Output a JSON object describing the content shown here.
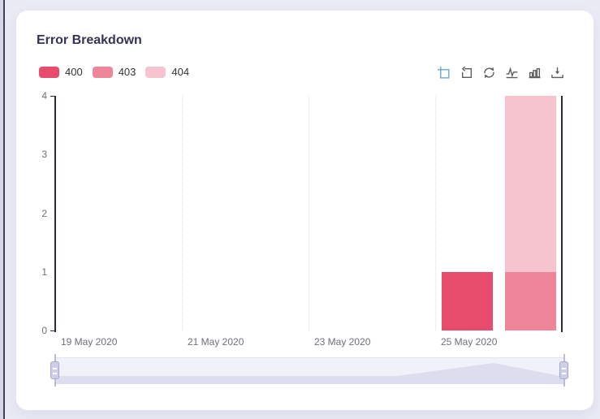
{
  "window": {
    "background": "#ebebf6",
    "edge_strip_color": "#d6d6e8",
    "edge_line_color": "#40405e"
  },
  "card": {
    "title": "Error Breakdown",
    "title_color": "#333354",
    "background": "#ffffff"
  },
  "legend": {
    "position": "top-left",
    "items": [
      {
        "label": "400",
        "color": "#e84c6d"
      },
      {
        "label": "403",
        "color": "#ef8598"
      },
      {
        "label": "404",
        "color": "#f6c4cf"
      }
    ]
  },
  "toolbar": {
    "icon_color": "#5c5c5c",
    "active_color": "#6ba7d2",
    "icons": [
      {
        "name": "zoom-select-icon",
        "active": true
      },
      {
        "name": "zoom-reset-icon",
        "active": false
      },
      {
        "name": "restore-icon",
        "active": false
      },
      {
        "name": "line-chart-toggle-icon",
        "active": false
      },
      {
        "name": "bar-chart-toggle-icon",
        "active": false
      },
      {
        "name": "save-image-icon",
        "active": false
      }
    ]
  },
  "chart_data": {
    "type": "bar",
    "title": "Error Breakdown",
    "x_tick_labels": [
      "19 May 2020",
      "21 May 2020",
      "23 May 2020",
      "25 May 2020"
    ],
    "y_ticks": [
      0,
      1,
      2,
      3,
      4
    ],
    "ylim": [
      0,
      4
    ],
    "xlabel": "",
    "ylabel": "",
    "grid": "vertical-dotted",
    "legend_position": "top-left",
    "axis_color": "#2b2b38",
    "label_color": "#6e7079",
    "series": [
      {
        "name": "400",
        "color": "#e84c6d",
        "stack": "g1",
        "points": [
          {
            "x": "25 May 2020",
            "y": 1
          }
        ]
      },
      {
        "name": "403",
        "color": "#ef8598",
        "stack": "g2",
        "points": [
          {
            "x": "25 May 2020",
            "y": 1
          }
        ]
      },
      {
        "name": "404",
        "color": "#f6c4cf",
        "stack": "g2",
        "points": [
          {
            "x": "25 May 2020",
            "y": 3
          }
        ]
      }
    ]
  },
  "datazoom": {
    "track_color": "#f1f2f9",
    "shadow_color": "#dcdeef",
    "handle_color": "#cdcfe8",
    "range": [
      "19 May 2020",
      "27 May 2020"
    ]
  }
}
